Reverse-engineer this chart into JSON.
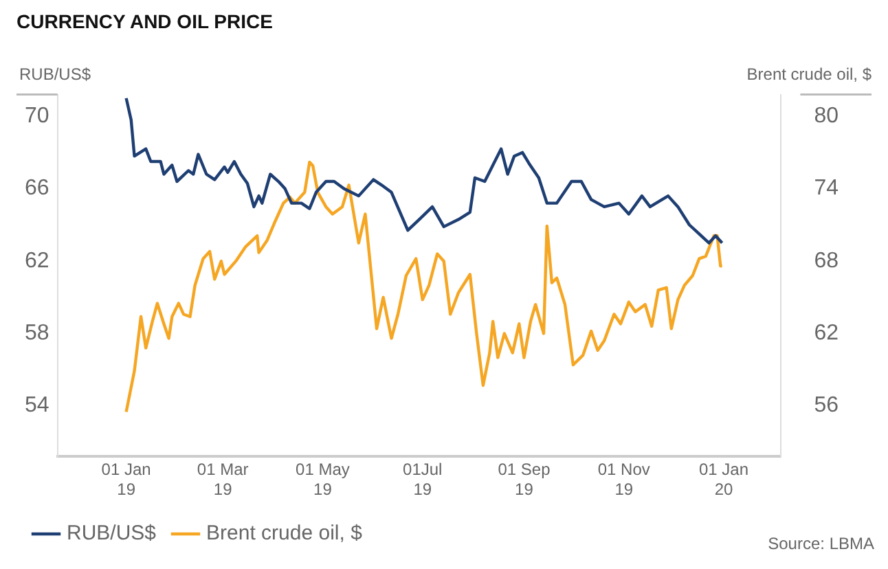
{
  "chart_data": {
    "type": "line",
    "title": "CURRENCY AND OIL PRICE",
    "ylabel": "RUB/US$",
    "y2label": "Brent crude oil, $",
    "annotations": [
      "Source: LBMA"
    ],
    "legend": "bottom left",
    "grid": false,
    "xlim": [
      "2018-11-20",
      "2020-02-05"
    ],
    "xticks": [
      {
        "value": "2019-01-01",
        "label": "01 Jan 19"
      },
      {
        "value": "2019-03-01",
        "label": "01 Mar 19"
      },
      {
        "value": "2019-05-01",
        "label": "01 May 19"
      },
      {
        "value": "2019-07-01",
        "label": "01Jul 19"
      },
      {
        "value": "2019-09-01",
        "label": "01 Sep 19"
      },
      {
        "value": "2019-11-01",
        "label": "01 Nov 19"
      },
      {
        "value": "2020-01-01",
        "label": "01 Jan 20"
      }
    ],
    "ylim": [
      51.2,
      71.2
    ],
    "yticks": [
      54,
      58,
      62,
      66,
      70
    ],
    "y2lim": [
      51.8,
      81.8
    ],
    "y2ticks": [
      56,
      62,
      68,
      74,
      80
    ],
    "series": [
      {
        "name": "RUB/US$",
        "color": "#1f3f73",
        "x": [
          "2019-01-01",
          "2019-01-04",
          "2019-01-06",
          "2019-01-13",
          "2019-01-16",
          "2019-01-22",
          "2019-01-24",
          "2019-01-29",
          "2019-02-01",
          "2019-02-08",
          "2019-02-11",
          "2019-02-14",
          "2019-02-19",
          "2019-02-24",
          "2019-03-02",
          "2019-03-04",
          "2019-03-08",
          "2019-03-12",
          "2019-03-16",
          "2019-03-20",
          "2019-03-23",
          "2019-03-25",
          "2019-03-30",
          "2019-04-04",
          "2019-04-08",
          "2019-04-12",
          "2019-04-18",
          "2019-04-23",
          "2019-04-27",
          "2019-05-03",
          "2019-05-08",
          "2019-05-14",
          "2019-05-23",
          "2019-06-01",
          "2019-06-06",
          "2019-06-12",
          "2019-06-22",
          "2019-06-29",
          "2019-07-07",
          "2019-07-14",
          "2019-07-23",
          "2019-07-30",
          "2019-08-02",
          "2019-08-08",
          "2019-08-13",
          "2019-08-18",
          "2019-08-22",
          "2019-08-26",
          "2019-08-31",
          "2019-09-04",
          "2019-09-10",
          "2019-09-15",
          "2019-09-21",
          "2019-09-30",
          "2019-10-06",
          "2019-10-12",
          "2019-10-20",
          "2019-10-29",
          "2019-11-04",
          "2019-11-12",
          "2019-11-17",
          "2019-11-28",
          "2019-12-04",
          "2019-12-11",
          "2019-12-17",
          "2019-12-23",
          "2019-12-27",
          "2019-12-31"
        ],
        "values": [
          71.0,
          69.8,
          67.8,
          68.2,
          67.5,
          67.5,
          66.8,
          67.3,
          66.4,
          67.0,
          66.8,
          67.9,
          66.8,
          66.5,
          67.2,
          66.9,
          67.5,
          66.8,
          66.3,
          65.0,
          65.6,
          65.2,
          66.8,
          66.4,
          66.0,
          65.2,
          65.2,
          64.9,
          65.8,
          66.4,
          66.4,
          66.0,
          65.6,
          66.5,
          66.2,
          65.8,
          63.7,
          64.3,
          65.0,
          63.9,
          64.3,
          64.7,
          66.6,
          66.4,
          67.3,
          68.2,
          66.8,
          67.8,
          68.0,
          67.4,
          66.6,
          65.2,
          65.2,
          66.4,
          66.4,
          65.4,
          65.0,
          65.2,
          64.6,
          65.6,
          65.0,
          65.6,
          65.0,
          64.0,
          63.5,
          63.0,
          63.4,
          63.0
        ]
      },
      {
        "name": "Brent crude oil, $",
        "color": "#f5a623",
        "axis": "y2",
        "x": [
          "2019-01-01",
          "2019-01-06",
          "2019-01-10",
          "2019-01-13",
          "2019-01-17",
          "2019-01-20",
          "2019-01-24",
          "2019-01-27",
          "2019-01-29",
          "2019-02-02",
          "2019-02-05",
          "2019-02-09",
          "2019-02-12",
          "2019-02-17",
          "2019-02-21",
          "2019-02-24",
          "2019-02-28",
          "2019-03-02",
          "2019-03-09",
          "2019-03-15",
          "2019-03-22",
          "2019-03-23",
          "2019-03-28",
          "2019-04-02",
          "2019-04-07",
          "2019-04-11",
          "2019-04-14",
          "2019-04-20",
          "2019-04-23",
          "2019-04-25",
          "2019-04-28",
          "2019-05-03",
          "2019-05-07",
          "2019-05-13",
          "2019-05-17",
          "2019-05-23",
          "2019-05-27",
          "2019-06-03",
          "2019-06-07",
          "2019-06-12",
          "2019-06-16",
          "2019-06-21",
          "2019-06-27",
          "2019-07-01",
          "2019-07-05",
          "2019-07-10",
          "2019-07-14",
          "2019-07-18",
          "2019-07-23",
          "2019-07-30",
          "2019-08-03",
          "2019-08-07",
          "2019-08-11",
          "2019-08-13",
          "2019-08-16",
          "2019-08-20",
          "2019-08-25",
          "2019-08-29",
          "2019-09-01",
          "2019-09-05",
          "2019-09-08",
          "2019-09-13",
          "2019-09-15",
          "2019-09-18",
          "2019-09-21",
          "2019-09-26",
          "2019-10-01",
          "2019-10-07",
          "2019-10-12",
          "2019-10-16",
          "2019-10-20",
          "2019-10-26",
          "2019-10-30",
          "2019-11-04",
          "2019-11-08",
          "2019-11-14",
          "2019-11-18",
          "2019-11-22",
          "2019-11-27",
          "2019-11-30",
          "2019-12-04",
          "2019-12-08",
          "2019-12-13",
          "2019-12-17",
          "2019-12-21",
          "2019-12-26",
          "2019-12-28",
          "2019-12-30",
          "2019-12-31"
        ],
        "values": [
          55.5,
          58.9,
          63.4,
          60.8,
          63.0,
          64.5,
          62.8,
          61.6,
          63.4,
          64.5,
          63.6,
          63.4,
          66.0,
          68.2,
          68.8,
          66.5,
          68.0,
          66.9,
          68.0,
          69.2,
          70.1,
          68.7,
          69.7,
          71.3,
          72.8,
          73.3,
          72.8,
          73.7,
          76.2,
          75.9,
          73.7,
          72.5,
          71.9,
          72.5,
          74.3,
          69.5,
          71.9,
          62.4,
          65.0,
          61.6,
          63.6,
          66.8,
          68.2,
          64.8,
          66.0,
          68.6,
          68.0,
          63.6,
          65.4,
          66.9,
          62.0,
          57.7,
          60.4,
          63.0,
          60.0,
          62.0,
          60.4,
          62.8,
          60.0,
          63.0,
          64.4,
          62.0,
          70.9,
          66.2,
          66.6,
          64.4,
          59.4,
          60.2,
          62.2,
          60.6,
          61.4,
          63.6,
          62.8,
          64.6,
          63.8,
          64.4,
          62.6,
          65.6,
          65.8,
          62.4,
          64.8,
          66.0,
          66.8,
          68.2,
          68.4,
          70.1,
          70.1,
          67.6,
          67.6
        ]
      }
    ]
  }
}
